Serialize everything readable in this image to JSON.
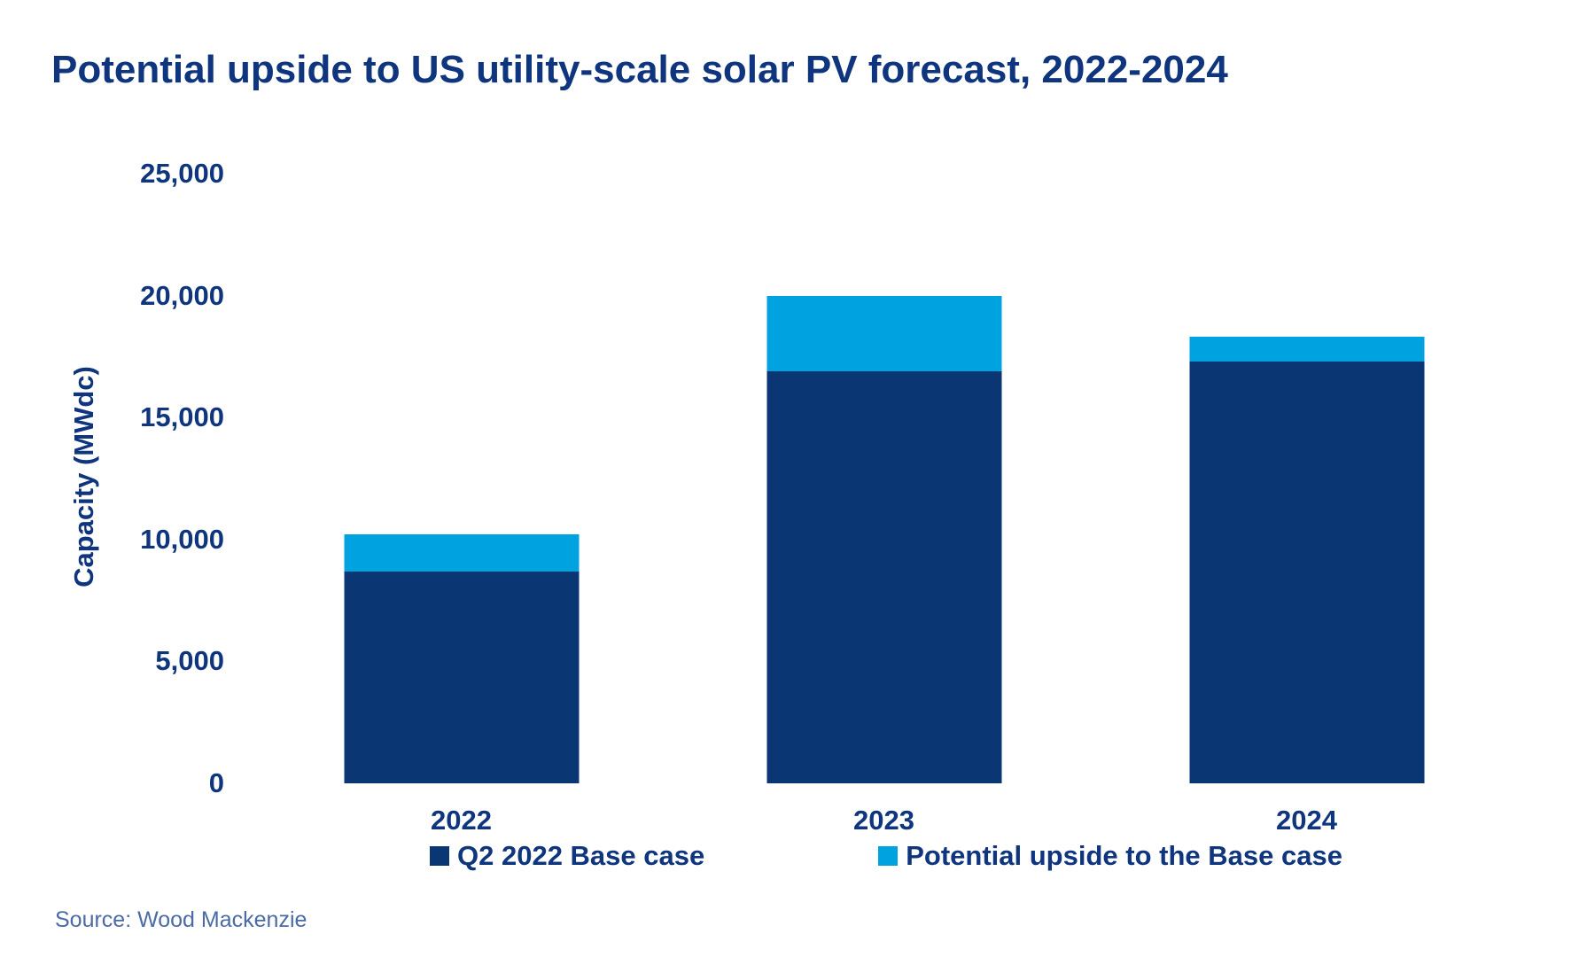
{
  "title": "Potential upside to US utility-scale solar PV forecast, 2022-2024",
  "source_note": "Source: Wood Mackenzie",
  "colors": {
    "base_case": "#0A3673",
    "upside": "#00A3E0",
    "heading_text": "#0E357D",
    "source_text": "#4A6BA5",
    "background": "#FFFFFF"
  },
  "y_axis": {
    "label": "Capacity (MWdc)"
  },
  "legend": {
    "items": [
      {
        "label": "Q2 2022 Base case",
        "color": "#0A3673"
      },
      {
        "label": "Potential upside to the Base case",
        "color": "#00A3E0"
      }
    ]
  },
  "chart_data": {
    "type": "bar",
    "stacked": true,
    "title": "Potential upside to US utility-scale solar PV forecast, 2022-2024",
    "xlabel": "",
    "ylabel": "Capacity (MWdc)",
    "categories": [
      "2022",
      "2023",
      "2024"
    ],
    "series": [
      {
        "name": "Q2 2022 Base case",
        "color": "#0A3673",
        "values": [
          8700,
          16900,
          17300
        ]
      },
      {
        "name": "Potential upside to the Base case",
        "color": "#00A3E0",
        "values": [
          1500,
          3100,
          1000
        ]
      }
    ],
    "totals": [
      10200,
      20000,
      18300
    ],
    "ylim": [
      0,
      25000
    ],
    "yticks": [
      0,
      5000,
      10000,
      15000,
      20000,
      25000
    ],
    "ytick_labels": [
      "0",
      "5,000",
      "10,000",
      "15,000",
      "20,000",
      "25,000"
    ],
    "grid": false,
    "axis_lines": false,
    "legend_position": "bottom"
  }
}
